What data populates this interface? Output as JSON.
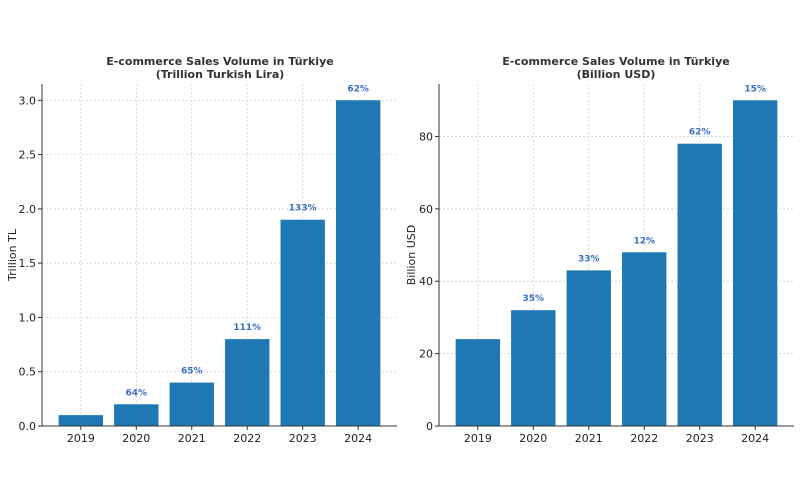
{
  "colors": {
    "bar": "#1f77b4",
    "pct": "#3a6fc4"
  },
  "chart_data": [
    {
      "type": "bar",
      "title": "E-commerce Sales Volume in Türkiye",
      "subtitle": "(Trillion Turkish Lira)",
      "ylabel": "Trillion TL",
      "categories": [
        "2019",
        "2020",
        "2021",
        "2022",
        "2023",
        "2024"
      ],
      "values": [
        0.1,
        0.2,
        0.4,
        0.8,
        1.9,
        3.0
      ],
      "labels": [
        "",
        "64%",
        "65%",
        "111%",
        "133%",
        "62%"
      ],
      "ylim": [
        0,
        3.15
      ],
      "yticks": [
        "0.0",
        "0.5",
        "1.0",
        "1.5",
        "2.0",
        "2.5",
        "3.0"
      ],
      "grid": true
    },
    {
      "type": "bar",
      "title": "E-commerce Sales Volume in Türkiye",
      "subtitle": "(Billion USD)",
      "ylabel": "Billion USD",
      "categories": [
        "2019",
        "2020",
        "2021",
        "2022",
        "2023",
        "2024"
      ],
      "values": [
        24,
        32,
        43,
        48,
        78,
        90
      ],
      "labels": [
        "",
        "35%",
        "33%",
        "12%",
        "62%",
        "15%"
      ],
      "ylim": [
        0,
        94.5
      ],
      "yticks": [
        "0",
        "20",
        "40",
        "60",
        "80"
      ],
      "grid": true
    }
  ]
}
